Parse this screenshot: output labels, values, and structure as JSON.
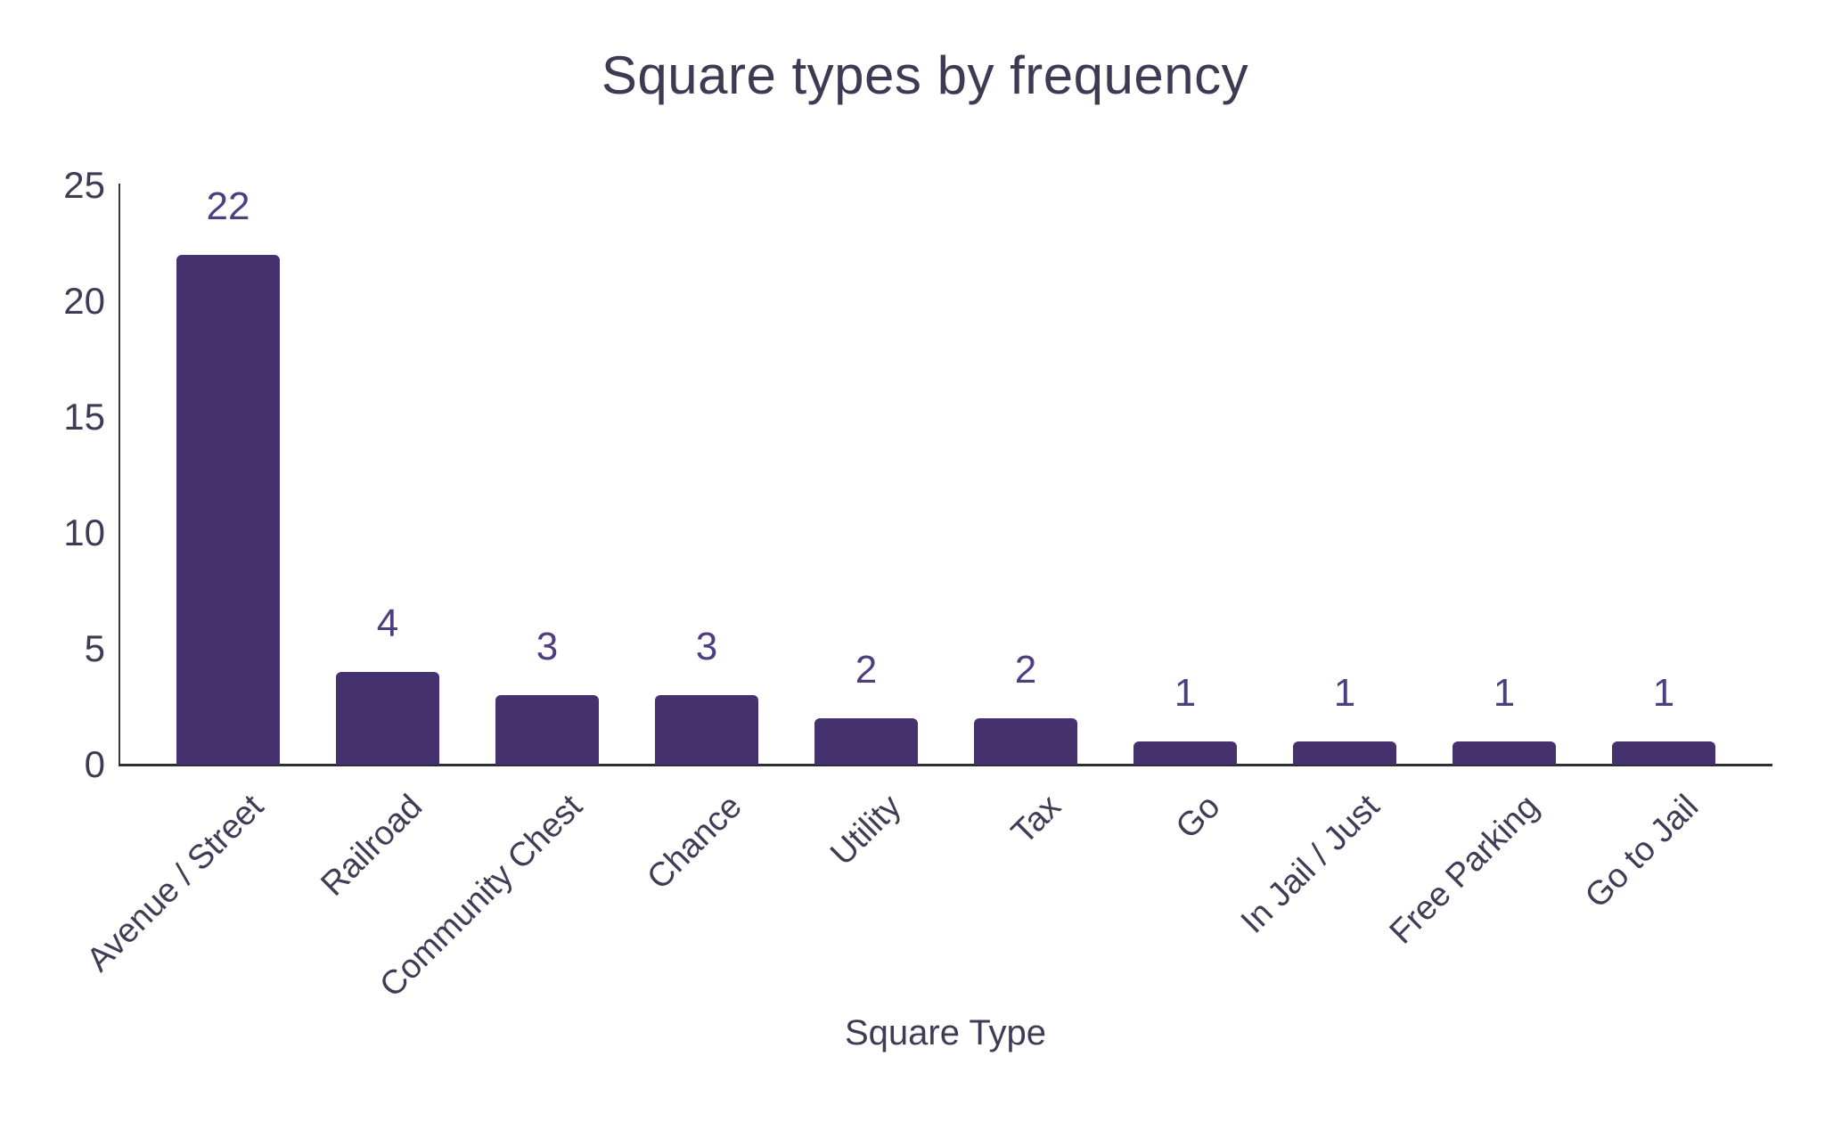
{
  "chart_data": {
    "type": "bar",
    "title": "Square types by frequency",
    "xlabel": "Square Type",
    "ylabel": "",
    "categories": [
      "Avenue / Street",
      "Railroad",
      "Community Chest",
      "Chance",
      "Utility",
      "Tax",
      "Go",
      "In Jail / Just",
      "Free Parking",
      "Go to Jail"
    ],
    "values": [
      22,
      4,
      3,
      3,
      2,
      2,
      1,
      1,
      1,
      1
    ],
    "ylim": [
      0,
      25
    ],
    "yticks": [
      0,
      5,
      10,
      15,
      20,
      25
    ],
    "grid": false,
    "legend": false,
    "colors": {
      "bar": "#46316f",
      "value_label": "#4f3d82",
      "text": "#3f3b55",
      "axis": "#2e2d33"
    }
  }
}
